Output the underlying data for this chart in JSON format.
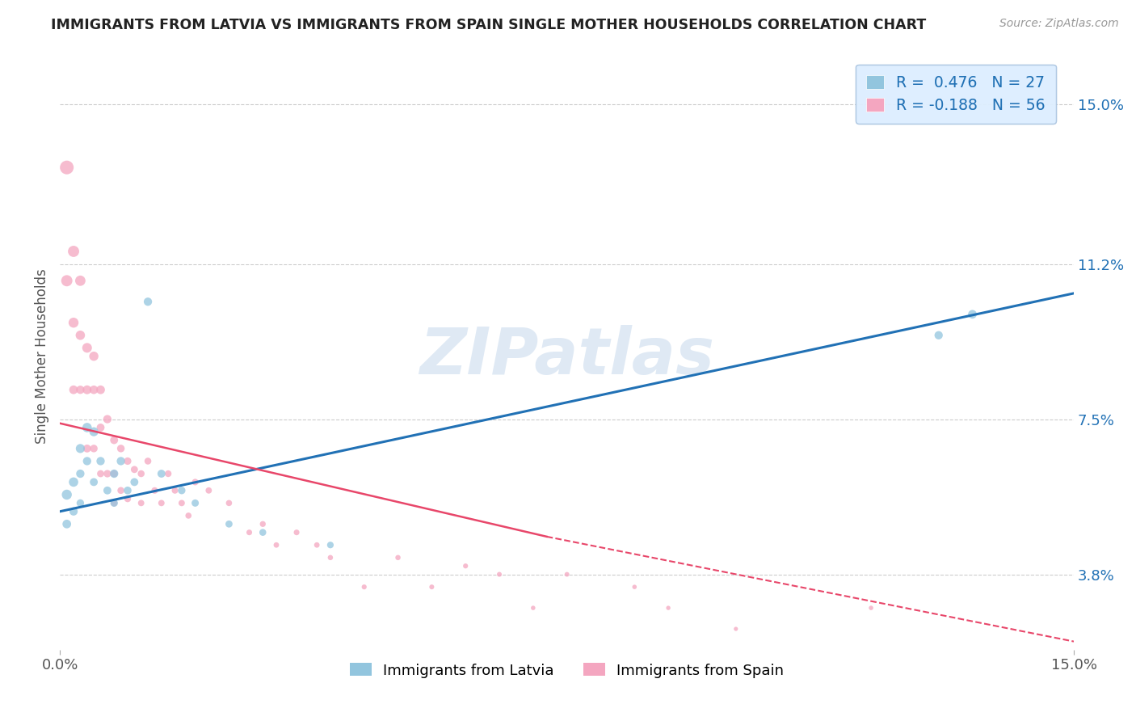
{
  "title": "IMMIGRANTS FROM LATVIA VS IMMIGRANTS FROM SPAIN SINGLE MOTHER HOUSEHOLDS CORRELATION CHART",
  "source_text": "Source: ZipAtlas.com",
  "ylabel": "Single Mother Households",
  "xlim": [
    0.0,
    0.15
  ],
  "ylim": [
    0.02,
    0.16
  ],
  "yticks": [
    0.038,
    0.075,
    0.112,
    0.15
  ],
  "ytick_labels": [
    "3.8%",
    "7.5%",
    "11.2%",
    "15.0%"
  ],
  "xticks": [
    0.0,
    0.15
  ],
  "xtick_labels": [
    "0.0%",
    "15.0%"
  ],
  "watermark": "ZIPatlas",
  "latvia": {
    "color": "#92c5de",
    "label": "Immigrants from Latvia",
    "x": [
      0.001,
      0.001,
      0.002,
      0.002,
      0.003,
      0.003,
      0.003,
      0.004,
      0.004,
      0.005,
      0.005,
      0.006,
      0.007,
      0.008,
      0.008,
      0.009,
      0.01,
      0.011,
      0.013,
      0.015,
      0.018,
      0.02,
      0.025,
      0.03,
      0.04,
      0.13,
      0.135
    ],
    "y": [
      0.057,
      0.05,
      0.06,
      0.053,
      0.068,
      0.062,
      0.055,
      0.073,
      0.065,
      0.072,
      0.06,
      0.065,
      0.058,
      0.062,
      0.055,
      0.065,
      0.058,
      0.06,
      0.103,
      0.062,
      0.058,
      0.055,
      0.05,
      0.048,
      0.045,
      0.095,
      0.1
    ],
    "size": [
      80,
      60,
      70,
      55,
      65,
      55,
      45,
      70,
      55,
      65,
      50,
      55,
      50,
      55,
      45,
      55,
      48,
      50,
      55,
      50,
      45,
      42,
      40,
      38,
      35,
      55,
      60
    ]
  },
  "spain": {
    "color": "#f4a6c0",
    "label": "Immigrants from Spain",
    "x": [
      0.001,
      0.001,
      0.002,
      0.002,
      0.002,
      0.003,
      0.003,
      0.003,
      0.004,
      0.004,
      0.004,
      0.005,
      0.005,
      0.005,
      0.006,
      0.006,
      0.006,
      0.007,
      0.007,
      0.008,
      0.008,
      0.008,
      0.009,
      0.009,
      0.01,
      0.01,
      0.011,
      0.012,
      0.012,
      0.013,
      0.014,
      0.015,
      0.016,
      0.017,
      0.018,
      0.019,
      0.02,
      0.022,
      0.025,
      0.028,
      0.03,
      0.032,
      0.035,
      0.038,
      0.04,
      0.045,
      0.05,
      0.055,
      0.06,
      0.065,
      0.07,
      0.075,
      0.085,
      0.09,
      0.1,
      0.12
    ],
    "y": [
      0.135,
      0.108,
      0.115,
      0.098,
      0.082,
      0.108,
      0.095,
      0.082,
      0.092,
      0.082,
      0.068,
      0.09,
      0.082,
      0.068,
      0.082,
      0.073,
      0.062,
      0.075,
      0.062,
      0.07,
      0.062,
      0.055,
      0.068,
      0.058,
      0.065,
      0.056,
      0.063,
      0.062,
      0.055,
      0.065,
      0.058,
      0.055,
      0.062,
      0.058,
      0.055,
      0.052,
      0.06,
      0.058,
      0.055,
      0.048,
      0.05,
      0.045,
      0.048,
      0.045,
      0.042,
      0.035,
      0.042,
      0.035,
      0.04,
      0.038,
      0.03,
      0.038,
      0.035,
      0.03,
      0.025,
      0.03
    ],
    "size": [
      150,
      100,
      100,
      80,
      60,
      85,
      70,
      55,
      75,
      62,
      50,
      68,
      58,
      46,
      60,
      50,
      40,
      55,
      44,
      50,
      42,
      35,
      46,
      38,
      44,
      36,
      40,
      38,
      32,
      38,
      34,
      32,
      36,
      33,
      32,
      30,
      34,
      32,
      30,
      26,
      28,
      24,
      26,
      24,
      22,
      20,
      22,
      19,
      20,
      19,
      16,
      18,
      16,
      15,
      14,
      16
    ]
  },
  "trend_latvia": {
    "color": "#2171b5",
    "x_start": 0.0,
    "x_end": 0.15,
    "y_start": 0.053,
    "y_end": 0.105,
    "linestyle": "solid",
    "linewidth": 2.2
  },
  "trend_spain_solid": {
    "color": "#e8476a",
    "x_start": 0.0,
    "x_end": 0.072,
    "y_start": 0.074,
    "y_end": 0.047,
    "linestyle": "solid",
    "linewidth": 1.8
  },
  "trend_spain_dashed": {
    "color": "#e8476a",
    "x_start": 0.072,
    "x_end": 0.15,
    "y_start": 0.047,
    "y_end": 0.022,
    "linestyle": "dashed",
    "linewidth": 1.5
  },
  "legend": {
    "box_color": "#ddeeff",
    "border_color": "#aac4e0",
    "text_color": "#2171b5"
  },
  "background_color": "#ffffff",
  "grid_color": "#cccccc",
  "title_color": "#222222",
  "axis_label_color": "#555555",
  "right_tick_color": "#2171b5"
}
